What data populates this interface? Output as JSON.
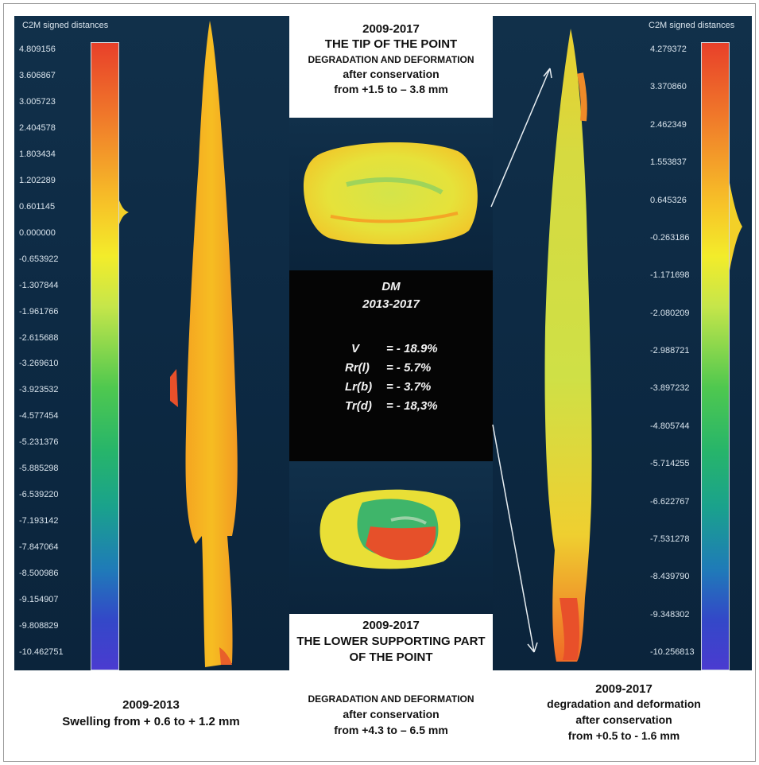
{
  "left_scale": {
    "title": "C2M signed distances",
    "ticks": [
      "4.809156",
      "3.606867",
      "3.005723",
      "2.404578",
      "1.803434",
      "1.202289",
      "0.601145",
      "0.000000",
      "-0.653922",
      "-1.307844",
      "-1.961766",
      "-2.615688",
      "-3.269610",
      "-3.923532",
      "-4.577454",
      "-5.231376",
      "-5.885298",
      "-6.539220",
      "-7.193142",
      "-7.847064",
      "-8.500986",
      "-9.154907",
      "-9.808829",
      "-10.462751"
    ]
  },
  "right_scale": {
    "title": "C2M signed distances",
    "ticks": [
      "4.279372",
      "3.370860",
      "2.462349",
      "1.553837",
      "0.645326",
      "-0.263186",
      "-1.171698",
      "-2.080209",
      "-2.988721",
      "-3.897232",
      "-4.805744",
      "-5.714255",
      "-6.622767",
      "-7.531278",
      "-8.439790",
      "-9.348302",
      "-10.256813"
    ]
  },
  "top_box": {
    "line1": "2009-2017",
    "line2": "THE TIP OF THE POINT",
    "line3": "DEGRADATION AND DEFORMATION",
    "line4": "after conservation",
    "line5": "from +1.5 to – 3.8 mm"
  },
  "dm_box": {
    "title": "DM",
    "period": "2013-2017",
    "rows": [
      {
        "label": "V",
        "value": "=  - 18.9%"
      },
      {
        "label": "Rr(l)",
        "value": "=  -  5.7%"
      },
      {
        "label": "Lr(b)",
        "value": "=  -  3.7%"
      },
      {
        "label": "Tr(d)",
        "value": "=  - 18,3%"
      }
    ]
  },
  "bottom_box": {
    "line1": "2009-2017",
    "line2": "THE LOWER SUPPORTING PART",
    "line3": "OF THE POINT",
    "line4": "DEGRADATION AND DEFORMATION",
    "line5": "after conservation",
    "line6": "from +4.3 to – 6.5 mm"
  },
  "left_caption": {
    "line1": "2009-2013",
    "line2": "Swelling from + 0.6 to + 1.2 mm"
  },
  "right_caption": {
    "line1": "2009-2017",
    "line2": "degradation and deformation",
    "line3": "after conservation",
    "line4": "from +0.5 to - 1.6 mm"
  },
  "colors": {
    "panel_background": "#0d2a44",
    "surface_yellow": "#f3d028",
    "surface_orange": "#f08a24",
    "surface_red": "#e0402a",
    "surface_green": "#3fb56a"
  }
}
